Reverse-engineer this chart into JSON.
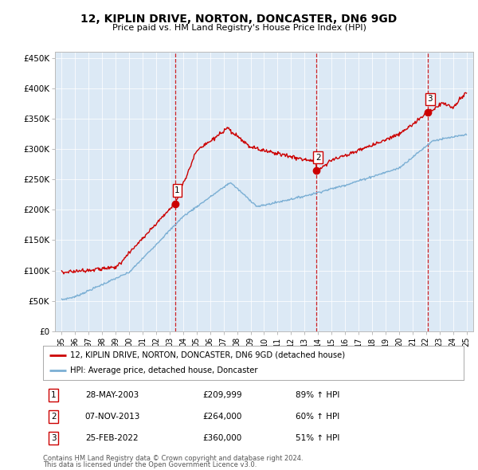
{
  "title": "12, KIPLIN DRIVE, NORTON, DONCASTER, DN6 9GD",
  "subtitle": "Price paid vs. HM Land Registry's House Price Index (HPI)",
  "background_color": "#dce9f5",
  "plot_bg_color": "#dce9f5",
  "sale_color": "#cc0000",
  "hpi_color": "#7bafd4",
  "sale_label": "12, KIPLIN DRIVE, NORTON, DONCASTER, DN6 9GD (detached house)",
  "hpi_label": "HPI: Average price, detached house, Doncaster",
  "transactions": [
    {
      "num": 1,
      "date": "28-MAY-2003",
      "price": 209999,
      "year": 2003.41,
      "hpi_pct": "89% ↑ HPI"
    },
    {
      "num": 2,
      "date": "07-NOV-2013",
      "price": 264000,
      "year": 2013.85,
      "hpi_pct": "60% ↑ HPI"
    },
    {
      "num": 3,
      "date": "25-FEB-2022",
      "price": 360000,
      "year": 2022.14,
      "hpi_pct": "51% ↑ HPI"
    }
  ],
  "footnote1": "Contains HM Land Registry data © Crown copyright and database right 2024.",
  "footnote2": "This data is licensed under the Open Government Licence v3.0.",
  "ylim": [
    0,
    460000
  ],
  "yticks": [
    0,
    50000,
    100000,
    150000,
    200000,
    250000,
    300000,
    350000,
    400000,
    450000
  ],
  "ytick_labels": [
    "£0",
    "£50K",
    "£100K",
    "£150K",
    "£200K",
    "£250K",
    "£300K",
    "£350K",
    "£400K",
    "£450K"
  ],
  "xlim_start": 1994.5,
  "xlim_end": 2025.5,
  "xtick_years": [
    1995,
    1996,
    1997,
    1998,
    1999,
    2000,
    2001,
    2002,
    2003,
    2004,
    2005,
    2006,
    2007,
    2008,
    2009,
    2010,
    2011,
    2012,
    2013,
    2014,
    2015,
    2016,
    2017,
    2018,
    2019,
    2020,
    2021,
    2022,
    2023,
    2024,
    2025
  ],
  "xtick_labels": [
    "95",
    "96",
    "97",
    "98",
    "99",
    "00",
    "01",
    "02",
    "03",
    "04",
    "05",
    "06",
    "07",
    "08",
    "09",
    "10",
    "11",
    "12",
    "13",
    "14",
    "15",
    "16",
    "17",
    "18",
    "19",
    "20",
    "21",
    "22",
    "23",
    "24",
    "25"
  ]
}
